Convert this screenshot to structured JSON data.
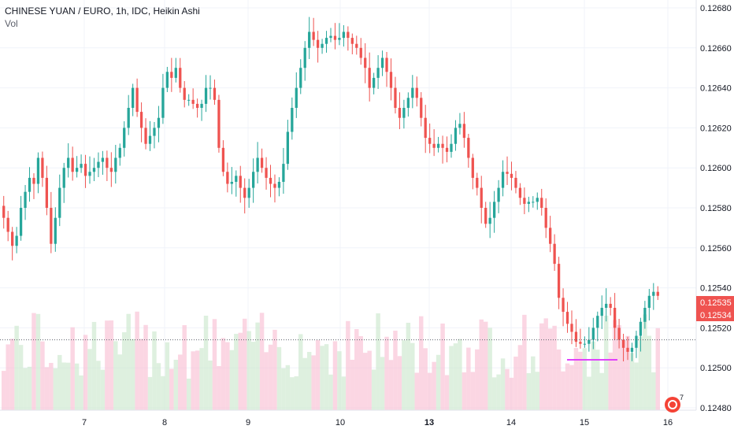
{
  "legend": {
    "title": "CHINESE YUAN / EURO, 1h, IDC, Heikin Ashi",
    "vol": "Vol"
  },
  "chart_data": {
    "type": "candlestick",
    "title": "CHINESE YUAN / EURO, 1h, IDC, Heikin Ashi",
    "y_ticks": [
      "0.12680",
      "0.12660",
      "0.12640",
      "0.12620",
      "0.12600",
      "0.12580",
      "0.12560",
      "0.12540",
      "0.12520",
      "0.12500",
      "0.12480"
    ],
    "x_ticks": [
      "7",
      "8",
      "9",
      "10",
      "13",
      "14",
      "15",
      "16"
    ],
    "bold_x_ticks": [
      "13"
    ],
    "ylim": [
      0.12475,
      0.12688
    ],
    "price_labels": [
      {
        "value": 0.12535,
        "text": "0.12535",
        "color": "#ef5350"
      },
      {
        "value": 0.12534,
        "text": "0.12534",
        "color": "#ef5350"
      }
    ],
    "marker_line": {
      "value": 0.12504,
      "color": "#e040fb"
    },
    "colors": {
      "up": "#26a69a",
      "down": "#ef5350",
      "vol_up": "#c8e6c9",
      "vol_down": "#f8bbd0"
    },
    "candles_up": [],
    "closes": [
      0.12575,
      0.12568,
      0.12561,
      0.12566,
      0.1258,
      0.12588,
      0.12595,
      0.12592,
      0.12605,
      0.12595,
      0.1258,
      0.12562,
      0.12575,
      0.1259,
      0.126,
      0.12605,
      0.12598,
      0.126,
      0.12602,
      0.12596,
      0.12598,
      0.126,
      0.12603,
      0.12605,
      0.126,
      0.12598,
      0.12605,
      0.1261,
      0.1262,
      0.1263,
      0.1264,
      0.12628,
      0.1262,
      0.12612,
      0.12616,
      0.1262,
      0.12625,
      0.1264,
      0.12648,
      0.12645,
      0.1265,
      0.1264,
      0.12634,
      0.12634,
      0.12632,
      0.1263,
      0.12632,
      0.1264,
      0.1264,
      0.12634,
      0.1261,
      0.12598,
      0.12592,
      0.12593,
      0.12596,
      0.1259,
      0.12585,
      0.1259,
      0.12598,
      0.12605,
      0.126,
      0.12595,
      0.12592,
      0.1259,
      0.12593,
      0.12602,
      0.12618,
      0.1263,
      0.1264,
      0.1265,
      0.1266,
      0.12668,
      0.12664,
      0.1266,
      0.12662,
      0.12665,
      0.12666,
      0.12664,
      0.12665,
      0.12668,
      0.12665,
      0.12662,
      0.1266,
      0.12655,
      0.1265,
      0.1264,
      0.12645,
      0.1265,
      0.12655,
      0.12648,
      0.1264,
      0.1263,
      0.12625,
      0.1263,
      0.12635,
      0.1264,
      0.12635,
      0.12625,
      0.12615,
      0.12612,
      0.1261,
      0.12612,
      0.1261,
      0.12608,
      0.12612,
      0.1262,
      0.12622,
      0.12615,
      0.12605,
      0.12595,
      0.1259,
      0.1258,
      0.12572,
      0.12575,
      0.12583,
      0.1259,
      0.12598,
      0.12597,
      0.12595,
      0.1259,
      0.12585,
      0.12582,
      0.12583,
      0.12583,
      0.12585,
      0.1258,
      0.1257,
      0.12562,
      0.12552,
      0.12535,
      0.12528,
      0.12522,
      0.12518,
      0.12513,
      0.12512,
      0.12512,
      0.12514,
      0.1252,
      0.12526,
      0.1253,
      0.12532,
      0.1253,
      0.1252,
      0.12514,
      0.1251,
      0.12508,
      0.1251,
      0.12516,
      0.12523,
      0.1253,
      0.12536,
      0.12538,
      0.12536
    ]
  },
  "watermark": {
    "badge_number": "7"
  }
}
